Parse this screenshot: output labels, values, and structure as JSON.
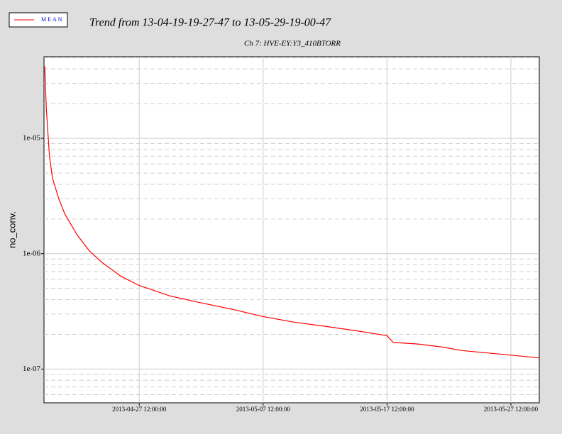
{
  "chart_data": {
    "type": "line",
    "title": "Trend from 13-04-19-19-27-47 to 13-05-29-19-00-47",
    "subtitle": "Ch 7: HVE-EY:Y3_410BTORR",
    "y_label": "no_conv.",
    "log_y": true,
    "grid": true,
    "legend": "top-left",
    "x": [
      "2013-04-19 21:00:00",
      "2013-04-20 00:00:00",
      "2013-04-20 06:00:00",
      "2013-04-20 12:00:00",
      "2013-04-21 00:00:00",
      "2013-04-21 12:00:00",
      "2013-04-22 12:00:00",
      "2013-04-23 12:00:00",
      "2013-04-24 12:00:00",
      "2013-04-26 00:00:00",
      "2013-04-27 12:00:00",
      "2013-04-30 00:00:00",
      "2013-05-02 12:00:00",
      "2013-05-05 00:00:00",
      "2013-05-07 12:00:00",
      "2013-05-10 00:00:00",
      "2013-05-12 12:00:00",
      "2013-05-15 00:00:00",
      "2013-05-17 12:00:00",
      "2013-05-18 00:00:00",
      "2013-05-20 00:00:00",
      "2013-05-22 00:00:00",
      "2013-05-23 12:00:00",
      "2013-05-25 00:00:00",
      "2013-05-27 12:00:00",
      "2013-05-29 19:00:00"
    ],
    "series": [
      {
        "name": "MEAN",
        "color": "#ff0000",
        "values": [
          4.2e-05,
          1.8e-05,
          7e-06,
          4.5e-06,
          3e-06,
          2.2e-06,
          1.45e-06,
          1.05e-06,
          8.4e-07,
          6.4e-07,
          5.3e-07,
          4.3e-07,
          3.75e-07,
          3.3e-07,
          2.85e-07,
          2.55e-07,
          2.35e-07,
          2.15e-07,
          1.95e-07,
          1.7e-07,
          1.65e-07,
          1.55e-07,
          1.45e-07,
          1.4e-07,
          1.32e-07,
          1.25e-07
        ]
      }
    ],
    "xlim": [
      "2013-04-19 19:27:47",
      "2013-05-29 19:00:47"
    ],
    "xticks": [
      "2013-04-27 12:00:00",
      "2013-05-07 12:00:00",
      "2013-05-17 12:00:00",
      "2013-05-27 12:00:00"
    ],
    "ylim": [
      5.1e-08,
      5.1e-05
    ],
    "yticks": [
      {
        "value": 1e-05,
        "label": "1e-05"
      },
      {
        "value": 1e-06,
        "label": "1e-06"
      },
      {
        "value": 1e-07,
        "label": "1e-07"
      }
    ]
  }
}
